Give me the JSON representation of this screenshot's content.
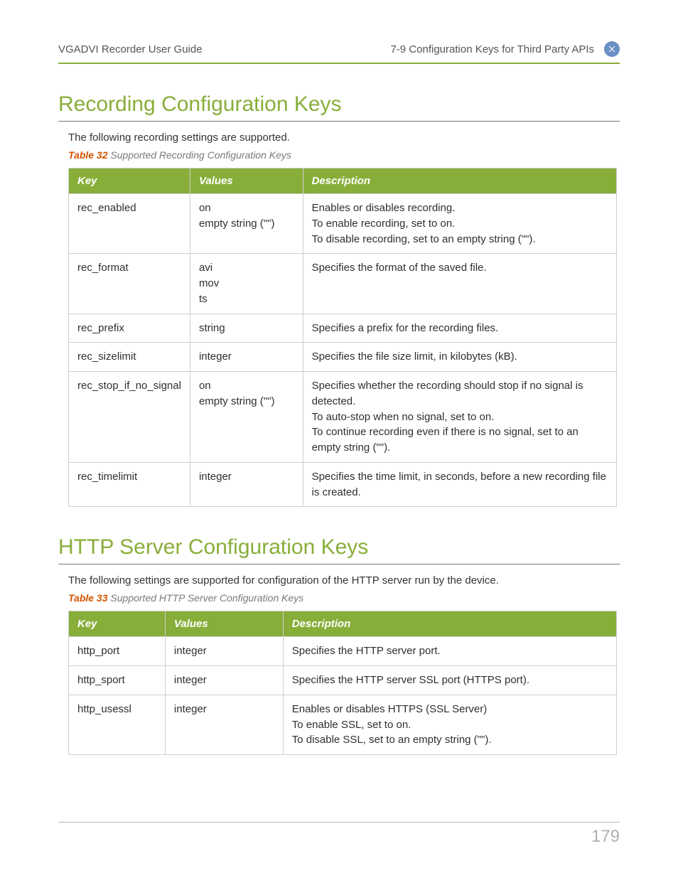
{
  "header": {
    "left": "VGADVI Recorder User Guide",
    "right": "7-9 Configuration Keys for Third Party APIs"
  },
  "colors": {
    "accent_green": "#88ae3a",
    "caption_orange": "#d35400",
    "icon_bg": "#6a8fc4",
    "text_main": "#333333",
    "text_muted": "#7a7a7a",
    "border_gray": "#cfcfcf",
    "page_num": "#b0b0b0"
  },
  "section1": {
    "heading": "Recording Configuration Keys",
    "intro": "The following recording settings are supported.",
    "caption_label": "Table 32",
    "caption_text": "Supported Recording Configuration Keys",
    "columns": [
      "Key",
      "Values",
      "Description"
    ],
    "rows": [
      {
        "key": "rec_enabled",
        "values": "on\nempty string (\"\")",
        "desc": "Enables or disables recording.\nTo enable recording, set to on.\nTo disable recording, set to an empty string (\"\")."
      },
      {
        "key": "rec_format",
        "values": "avi\nmov\nts",
        "desc": "Specifies the format of the saved file."
      },
      {
        "key": "rec_prefix",
        "values": "string",
        "desc": "Specifies a prefix for the recording files."
      },
      {
        "key": "rec_sizelimit",
        "values": "integer",
        "desc": "Specifies the file size limit, in kilobytes (kB)."
      },
      {
        "key": "rec_stop_if_no_signal",
        "values": "on\nempty string (\"\")",
        "desc": "Specifies whether the recording should stop if no signal is detected.\nTo auto-stop when no signal, set to on.\nTo continue recording even if there is no signal, set to an empty string (\"\")."
      },
      {
        "key": "rec_timelimit",
        "values": "integer",
        "desc": "Specifies the time limit, in seconds, before a new recording file is created."
      }
    ]
  },
  "section2": {
    "heading": "HTTP Server Configuration Keys",
    "intro": "The following settings are supported for configuration of the HTTP server run by the device.",
    "caption_label": "Table 33",
    "caption_text": "Supported HTTP Server Configuration Keys",
    "columns": [
      "Key",
      "Values",
      "Description"
    ],
    "rows": [
      {
        "key": "http_port",
        "values": "integer",
        "desc": "Specifies the HTTP server port."
      },
      {
        "key": "http_sport",
        "values": "integer",
        "desc": "Specifies the HTTP server SSL port (HTTPS port)."
      },
      {
        "key": "http_usessl",
        "values": "integer",
        "desc": "Enables or disables HTTPS (SSL Server)\nTo enable SSL, set to on.\nTo disable SSL, set to an empty string (\"\")."
      }
    ]
  },
  "page_number": "179"
}
